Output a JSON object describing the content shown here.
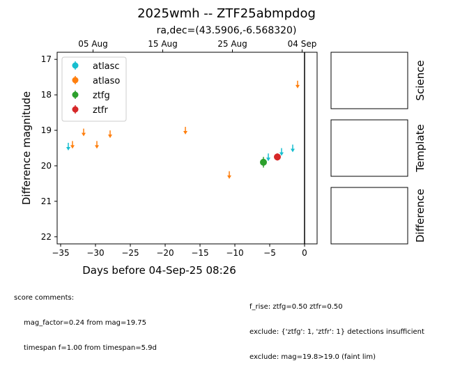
{
  "figure": {
    "title": "2025wmh -- ZTF25abmpdog",
    "subtitle": "ra,dec=(43.5906,-6.568320)"
  },
  "chart_data": {
    "type": "scatter",
    "title": "2025wmh -- ZTF25abmpdog",
    "subtitle": "ra,dec=(43.5906,-6.568320)",
    "xlabel": "Days before 04-Sep-25 08:26",
    "ylabel": "Difference magnitude",
    "xlim": [
      -35.5,
      1.8
    ],
    "ylim": [
      22.2,
      16.8
    ],
    "y_inverted": true,
    "x_ticks": [
      -35,
      -30,
      -25,
      -20,
      -15,
      -10,
      -5,
      0
    ],
    "y_ticks": [
      17,
      18,
      19,
      20,
      21,
      22
    ],
    "top_axis_ticks": [
      {
        "x": -30.35,
        "label": "05 Aug"
      },
      {
        "x": -20.35,
        "label": "15 Aug"
      },
      {
        "x": -10.35,
        "label": "25 Aug"
      },
      {
        "x": -0.35,
        "label": "04 Sep"
      }
    ],
    "reference_line_x": 0,
    "legend_position": "upper left",
    "series": [
      {
        "name": "atlasc",
        "color": "#17becf",
        "kind": "upper_limit",
        "x": [
          -33.9,
          -5.2,
          -3.3,
          -1.7
        ],
        "y": [
          19.45,
          19.75,
          19.6,
          19.5
        ]
      },
      {
        "name": "atlaso",
        "color": "#ff7f0e",
        "kind": "upper_limit",
        "x": [
          -33.3,
          -31.7,
          -29.8,
          -27.9,
          -17.1,
          -10.8,
          -1.0
        ],
        "y": [
          19.4,
          19.05,
          19.4,
          19.1,
          19.0,
          20.25,
          17.7
        ]
      },
      {
        "name": "ztfg",
        "color": "#2ca02c",
        "kind": "detection",
        "x": [
          -5.9
        ],
        "y": [
          19.9
        ],
        "err": [
          0.15
        ]
      },
      {
        "name": "ztfr",
        "color": "#d62728",
        "kind": "detection",
        "x": [
          -3.9
        ],
        "y": [
          19.75
        ],
        "err": [
          0.1
        ]
      }
    ]
  },
  "side_panels": [
    "Science",
    "Template",
    "Difference"
  ],
  "comments": {
    "left_header": "score comments:",
    "left_lines": [
      "mag_factor=0.24 from mag=19.75",
      "timespan f=1.00 from timespan=5.9d"
    ],
    "right_lines": [
      "f_rise: ztfg=0.50 ztfr=0.50",
      "exclude: {'ztfg': 1, 'ztfr': 1} detections insufficient",
      "exclude: mag=19.8>19.0 (faint lim)"
    ]
  }
}
